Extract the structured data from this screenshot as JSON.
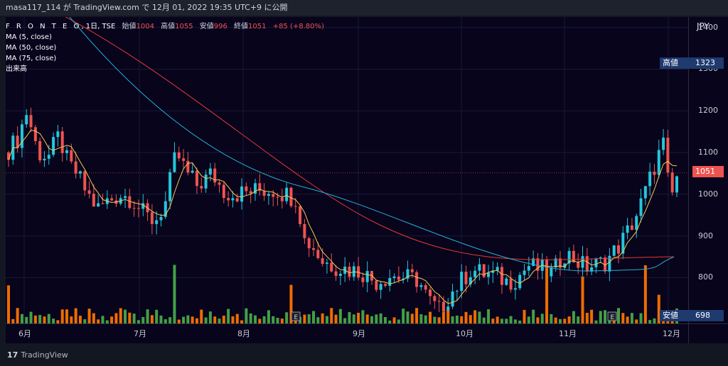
{
  "header": {
    "text": "masa117_114 が TradingView.com で 12月 01, 2022 19:35 UTC+9 に公開"
  },
  "legend": {
    "symbol": "F R O N T E O",
    "interval": "1日",
    "exchange": "TSE",
    "open_label": "始値",
    "open_value": "1004",
    "high_label": "高値",
    "high_value": "1055",
    "low_label": "安値",
    "low_value": "996",
    "close_label": "終値",
    "close_value": "1051",
    "change": "+85 (+8.80%)",
    "indicators": [
      "MA (5, close)",
      "MA (50, close)",
      "MA (75, close)",
      "出来高"
    ]
  },
  "price_scale": {
    "currency": "JPY",
    "high_label": "高値",
    "high_value": "1323",
    "low_label": "安値",
    "low_value": "698",
    "current_value": "1051"
  },
  "footer": {
    "brand": "TradingView"
  },
  "colors": {
    "up": "#26c6da",
    "down": "#ef5350",
    "vol_up": "#43a047",
    "vol_down": "#ef6c00",
    "ma5": "#f9c74f",
    "ma50": "#26a69a",
    "ma75": "#e53935",
    "tag_bg": "#1e3a6e",
    "price_tag": "#ef5350"
  },
  "chart_data": {
    "type": "candlestick",
    "y_ticks": [
      1400,
      1300,
      1200,
      1100,
      1000,
      900,
      800
    ],
    "ylim": [
      690,
      1425
    ],
    "x_labels": [
      "6月",
      "7月",
      "8月",
      "9月",
      "10月",
      "11月",
      "12月"
    ],
    "earnings_marker": "E",
    "series": [
      {
        "name": "MA (5, close)"
      },
      {
        "name": "MA (50, close)"
      },
      {
        "name": "MA (75, close)"
      }
    ],
    "markers": {
      "high": 1323,
      "low": 698,
      "last": 1051
    }
  }
}
